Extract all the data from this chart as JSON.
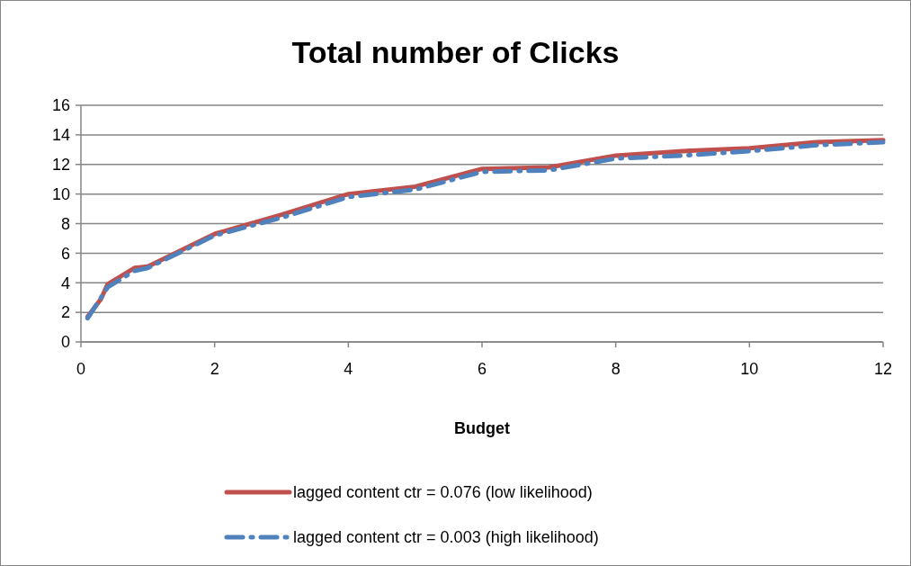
{
  "chart_data": {
    "type": "line",
    "title": "Total number of Clicks",
    "xlabel": "Budget",
    "xlim": [
      0,
      12
    ],
    "xticks": [
      0,
      2,
      4,
      6,
      8,
      10,
      12
    ],
    "ylim": [
      0,
      16
    ],
    "yticks": [
      0,
      2,
      4,
      6,
      8,
      10,
      12,
      14,
      16
    ],
    "grid": "y",
    "legend": "bottom",
    "marker": "none",
    "series": [
      {
        "name": "lagged content ctr = 0.076 (low likelihood)",
        "color": "#c0504d",
        "line_style": "solid",
        "x": [
          0.1,
          0.3,
          0.4,
          0.8,
          1,
          2,
          3,
          4,
          5,
          6,
          7,
          8,
          9,
          10,
          11,
          12
        ],
        "values": [
          1.7,
          2.9,
          3.9,
          5.0,
          5.1,
          7.3,
          8.6,
          10.0,
          10.5,
          11.7,
          11.8,
          12.6,
          12.9,
          13.1,
          13.5,
          13.65
        ]
      },
      {
        "name": "lagged content ctr = 0.003 (high likelihood)",
        "color": "#4f81bd",
        "line_style": "dashdot",
        "x": [
          0.1,
          0.4,
          0.8,
          1,
          2,
          3,
          4,
          5,
          6,
          7,
          8,
          9,
          10,
          11,
          12
        ],
        "values": [
          1.6,
          3.7,
          4.8,
          5.0,
          7.2,
          8.4,
          9.8,
          10.3,
          11.5,
          11.6,
          12.4,
          12.6,
          12.9,
          13.3,
          13.5
        ]
      }
    ]
  }
}
